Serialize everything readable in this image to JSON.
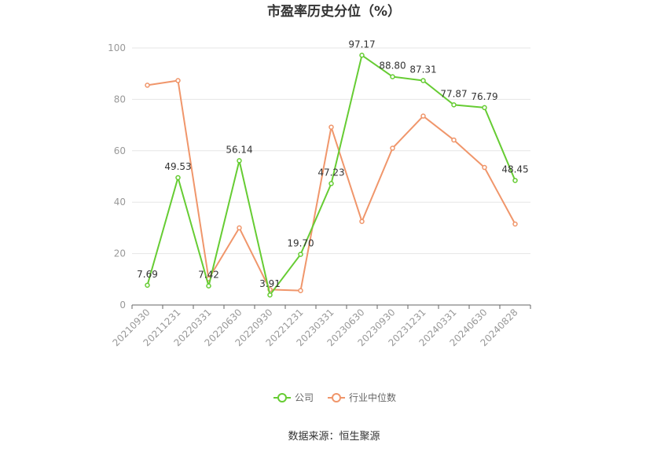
{
  "chart_data": {
    "type": "line",
    "title": "市盈率历史分位（%）",
    "source": "数据来源：恒生聚源",
    "categories": [
      "20210930",
      "20211231",
      "20220331",
      "20220630",
      "20220930",
      "20221231",
      "20230331",
      "20230630",
      "20230930",
      "20231231",
      "20240331",
      "20240630",
      "20240828"
    ],
    "ylim": [
      0,
      100
    ],
    "yticks": [
      0,
      20,
      40,
      60,
      80,
      100
    ],
    "grid": true,
    "legend_position": "bottom-center",
    "series": [
      {
        "name": "公司",
        "color": "#66cc33",
        "show_labels": true,
        "values": [
          7.69,
          49.53,
          7.42,
          56.14,
          3.91,
          19.7,
          47.23,
          97.17,
          88.8,
          87.31,
          77.87,
          76.79,
          48.45
        ],
        "labels": [
          "7.69",
          "49.53",
          "7.42",
          "56.14",
          "3.91",
          "19.70",
          "47.23",
          "97.17",
          "88.80",
          "87.31",
          "77.87",
          "76.79",
          "48.45"
        ]
      },
      {
        "name": "行业中位数",
        "color": "#f0966b",
        "show_labels": false,
        "values": [
          85.5,
          87.3,
          10.2,
          30.0,
          6.0,
          5.6,
          69.2,
          32.5,
          61.0,
          73.5,
          64.2,
          53.5,
          31.5
        ]
      }
    ]
  }
}
